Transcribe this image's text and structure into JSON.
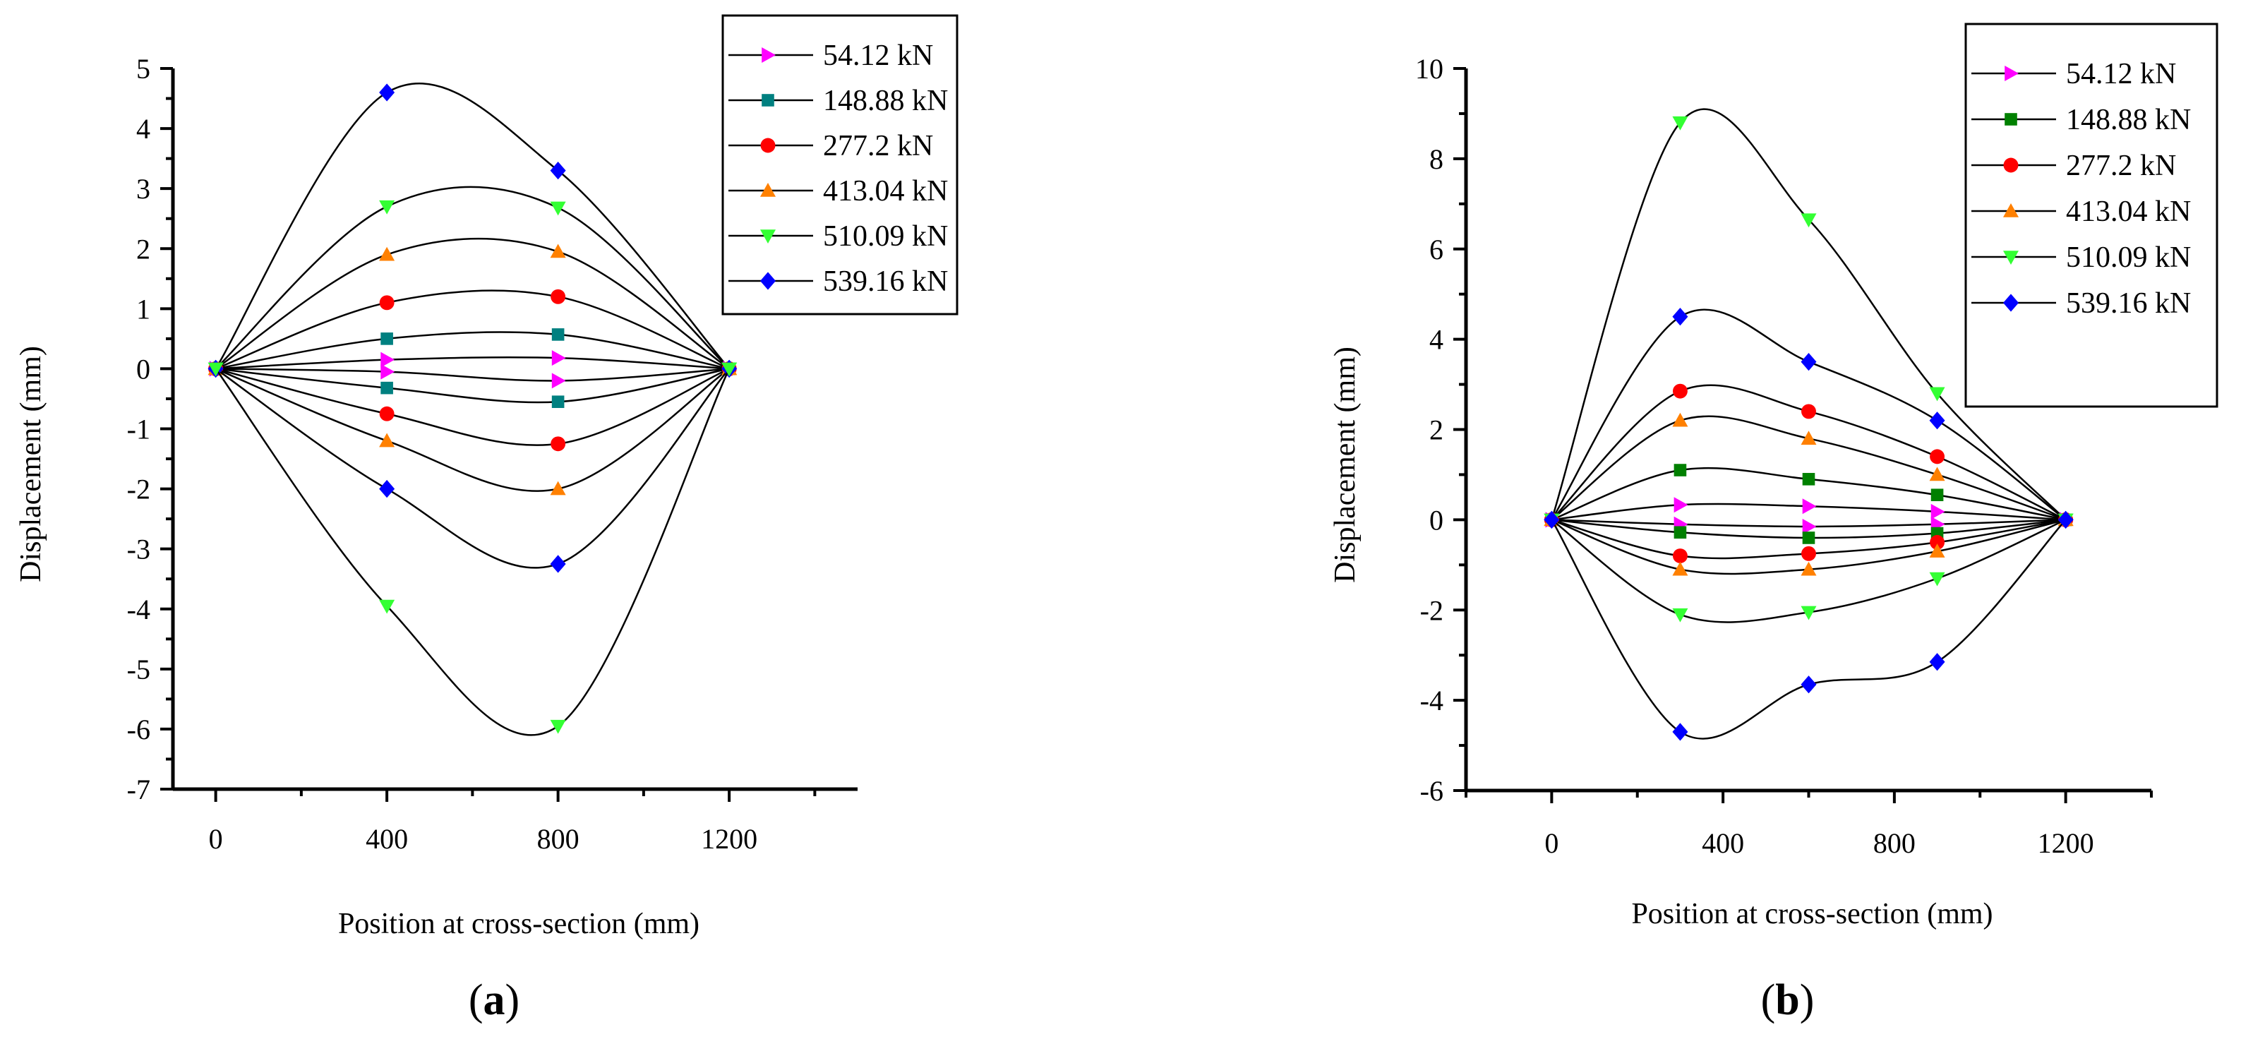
{
  "chart_data": [
    {
      "type": "line",
      "panel_label": "a",
      "xlabel": "Position at cross-section (mm)",
      "ylabel": "Displacement (mm)",
      "xlim": [
        -100,
        1500
      ],
      "ylim": [
        -7,
        5
      ],
      "xticks": [
        0,
        400,
        800,
        1200
      ],
      "yticks": [
        -7,
        -6,
        -5,
        -4,
        -3,
        -2,
        -1,
        0,
        1,
        2,
        3,
        4,
        5
      ],
      "x": [
        0,
        400,
        800,
        1200
      ],
      "legend_position": "top-right",
      "series": [
        {
          "name": "54.12 kN",
          "side": "upper",
          "values": [
            0,
            0.15,
            0.18,
            0
          ],
          "color": "#ff00ff",
          "marker": "triangle-right"
        },
        {
          "name": "148.88 kN",
          "side": "upper",
          "values": [
            0,
            0.5,
            0.57,
            0
          ],
          "color": "#008080",
          "marker": "square"
        },
        {
          "name": "277.2 kN",
          "side": "upper",
          "values": [
            0,
            1.1,
            1.2,
            0
          ],
          "color": "#ff0000",
          "marker": "circle"
        },
        {
          "name": "413.04 kN",
          "side": "upper",
          "values": [
            0,
            1.9,
            1.95,
            0
          ],
          "color": "#ff8000",
          "marker": "triangle-up"
        },
        {
          "name": "510.09 kN",
          "side": "upper",
          "values": [
            0,
            2.7,
            2.68,
            0
          ],
          "color": "#33ff33",
          "marker": "triangle-down"
        },
        {
          "name": "539.16 kN",
          "side": "upper",
          "values": [
            0,
            4.6,
            3.3,
            0
          ],
          "color": "#0000ff",
          "marker": "diamond"
        },
        {
          "name": "54.12 kN",
          "side": "lower",
          "values": [
            0,
            -0.05,
            -0.2,
            0
          ],
          "color": "#ff00ff",
          "marker": "triangle-right"
        },
        {
          "name": "148.88 kN",
          "side": "lower",
          "values": [
            0,
            -0.32,
            -0.55,
            0
          ],
          "color": "#008080",
          "marker": "square"
        },
        {
          "name": "277.2 kN",
          "side": "lower",
          "values": [
            0,
            -0.75,
            -1.25,
            0
          ],
          "color": "#ff0000",
          "marker": "circle"
        },
        {
          "name": "413.04 kN",
          "side": "lower",
          "values": [
            0,
            -1.2,
            -2.0,
            0
          ],
          "color": "#ff8000",
          "marker": "triangle-up"
        },
        {
          "name": "539.16 kN",
          "side": "lower",
          "values": [
            0,
            -2.0,
            -3.25,
            0
          ],
          "color": "#0000ff",
          "marker": "diamond"
        },
        {
          "name": "510.09 kN",
          "side": "lower",
          "values": [
            0,
            -3.95,
            -5.95,
            0
          ],
          "color": "#33ff33",
          "marker": "triangle-down"
        }
      ],
      "legend": [
        {
          "label": "54.12 kN",
          "color": "#ff00ff",
          "marker": "triangle-right"
        },
        {
          "label": "148.88 kN",
          "color": "#008080",
          "marker": "square"
        },
        {
          "label": "277.2 kN",
          "color": "#ff0000",
          "marker": "circle"
        },
        {
          "label": "413.04 kN",
          "color": "#ff8000",
          "marker": "triangle-up"
        },
        {
          "label": "510.09 kN",
          "color": "#33ff33",
          "marker": "triangle-down"
        },
        {
          "label": "539.16 kN",
          "color": "#0000ff",
          "marker": "diamond"
        }
      ]
    },
    {
      "type": "line",
      "panel_label": "b",
      "xlabel": "Position at cross-section (mm)",
      "ylabel": "Displacement (mm)",
      "xlim": [
        -200,
        1400
      ],
      "ylim": [
        -6,
        10
      ],
      "xticks": [
        0,
        400,
        800,
        1200
      ],
      "yticks": [
        -6,
        -4,
        -2,
        0,
        2,
        4,
        6,
        8,
        10
      ],
      "x": [
        0,
        300,
        600,
        900,
        1200
      ],
      "legend_position": "top-right",
      "series": [
        {
          "name": "54.12 kN",
          "side": "upper",
          "values": [
            0,
            0.33,
            0.3,
            0.18,
            0
          ],
          "color": "#ff00ff",
          "marker": "triangle-right"
        },
        {
          "name": "148.88 kN",
          "side": "upper",
          "values": [
            0,
            1.1,
            0.9,
            0.55,
            0
          ],
          "color": "#008000",
          "marker": "square"
        },
        {
          "name": "277.2 kN",
          "side": "upper",
          "values": [
            0,
            2.85,
            2.4,
            1.4,
            0
          ],
          "color": "#ff0000",
          "marker": "circle"
        },
        {
          "name": "413.04 kN",
          "side": "upper",
          "values": [
            0,
            2.2,
            1.8,
            1.0,
            0
          ],
          "color": "#ff8000",
          "marker": "triangle-up"
        },
        {
          "name": "510.09 kN",
          "side": "upper",
          "values": [
            0,
            8.8,
            6.65,
            2.8,
            0
          ],
          "color": "#33ff33",
          "marker": "triangle-down"
        },
        {
          "name": "539.16 kN",
          "side": "upper",
          "values": [
            0,
            4.5,
            3.5,
            2.2,
            0
          ],
          "color": "#0000ff",
          "marker": "diamond"
        },
        {
          "name": "54.12 kN",
          "side": "lower",
          "values": [
            0,
            -0.1,
            -0.15,
            -0.1,
            0
          ],
          "color": "#ff00ff",
          "marker": "triangle-right"
        },
        {
          "name": "148.88 kN",
          "side": "lower",
          "values": [
            0,
            -0.28,
            -0.4,
            -0.3,
            0
          ],
          "color": "#008000",
          "marker": "square"
        },
        {
          "name": "277.2 kN",
          "side": "lower",
          "values": [
            0,
            -0.8,
            -0.75,
            -0.5,
            0
          ],
          "color": "#ff0000",
          "marker": "circle"
        },
        {
          "name": "413.04 kN",
          "side": "lower",
          "values": [
            0,
            -1.1,
            -1.1,
            -0.7,
            0
          ],
          "color": "#ff8000",
          "marker": "triangle-up"
        },
        {
          "name": "510.09 kN",
          "side": "lower",
          "values": [
            0,
            -2.1,
            -2.05,
            -1.3,
            0
          ],
          "color": "#33ff33",
          "marker": "triangle-down"
        },
        {
          "name": "539.16 kN",
          "side": "lower",
          "values": [
            0,
            -4.7,
            -3.65,
            -3.15,
            0
          ],
          "color": "#0000ff",
          "marker": "diamond"
        }
      ],
      "legend": [
        {
          "label": "54.12 kN",
          "color": "#ff00ff",
          "marker": "triangle-right"
        },
        {
          "label": "148.88 kN",
          "color": "#008000",
          "marker": "square"
        },
        {
          "label": "277.2 kN",
          "color": "#ff0000",
          "marker": "circle"
        },
        {
          "label": "413.04 kN",
          "color": "#ff8000",
          "marker": "triangle-up"
        },
        {
          "label": "510.09 kN",
          "color": "#33ff33",
          "marker": "triangle-down"
        },
        {
          "label": "539.16 kN",
          "color": "#0000ff",
          "marker": "diamond"
        }
      ]
    }
  ]
}
